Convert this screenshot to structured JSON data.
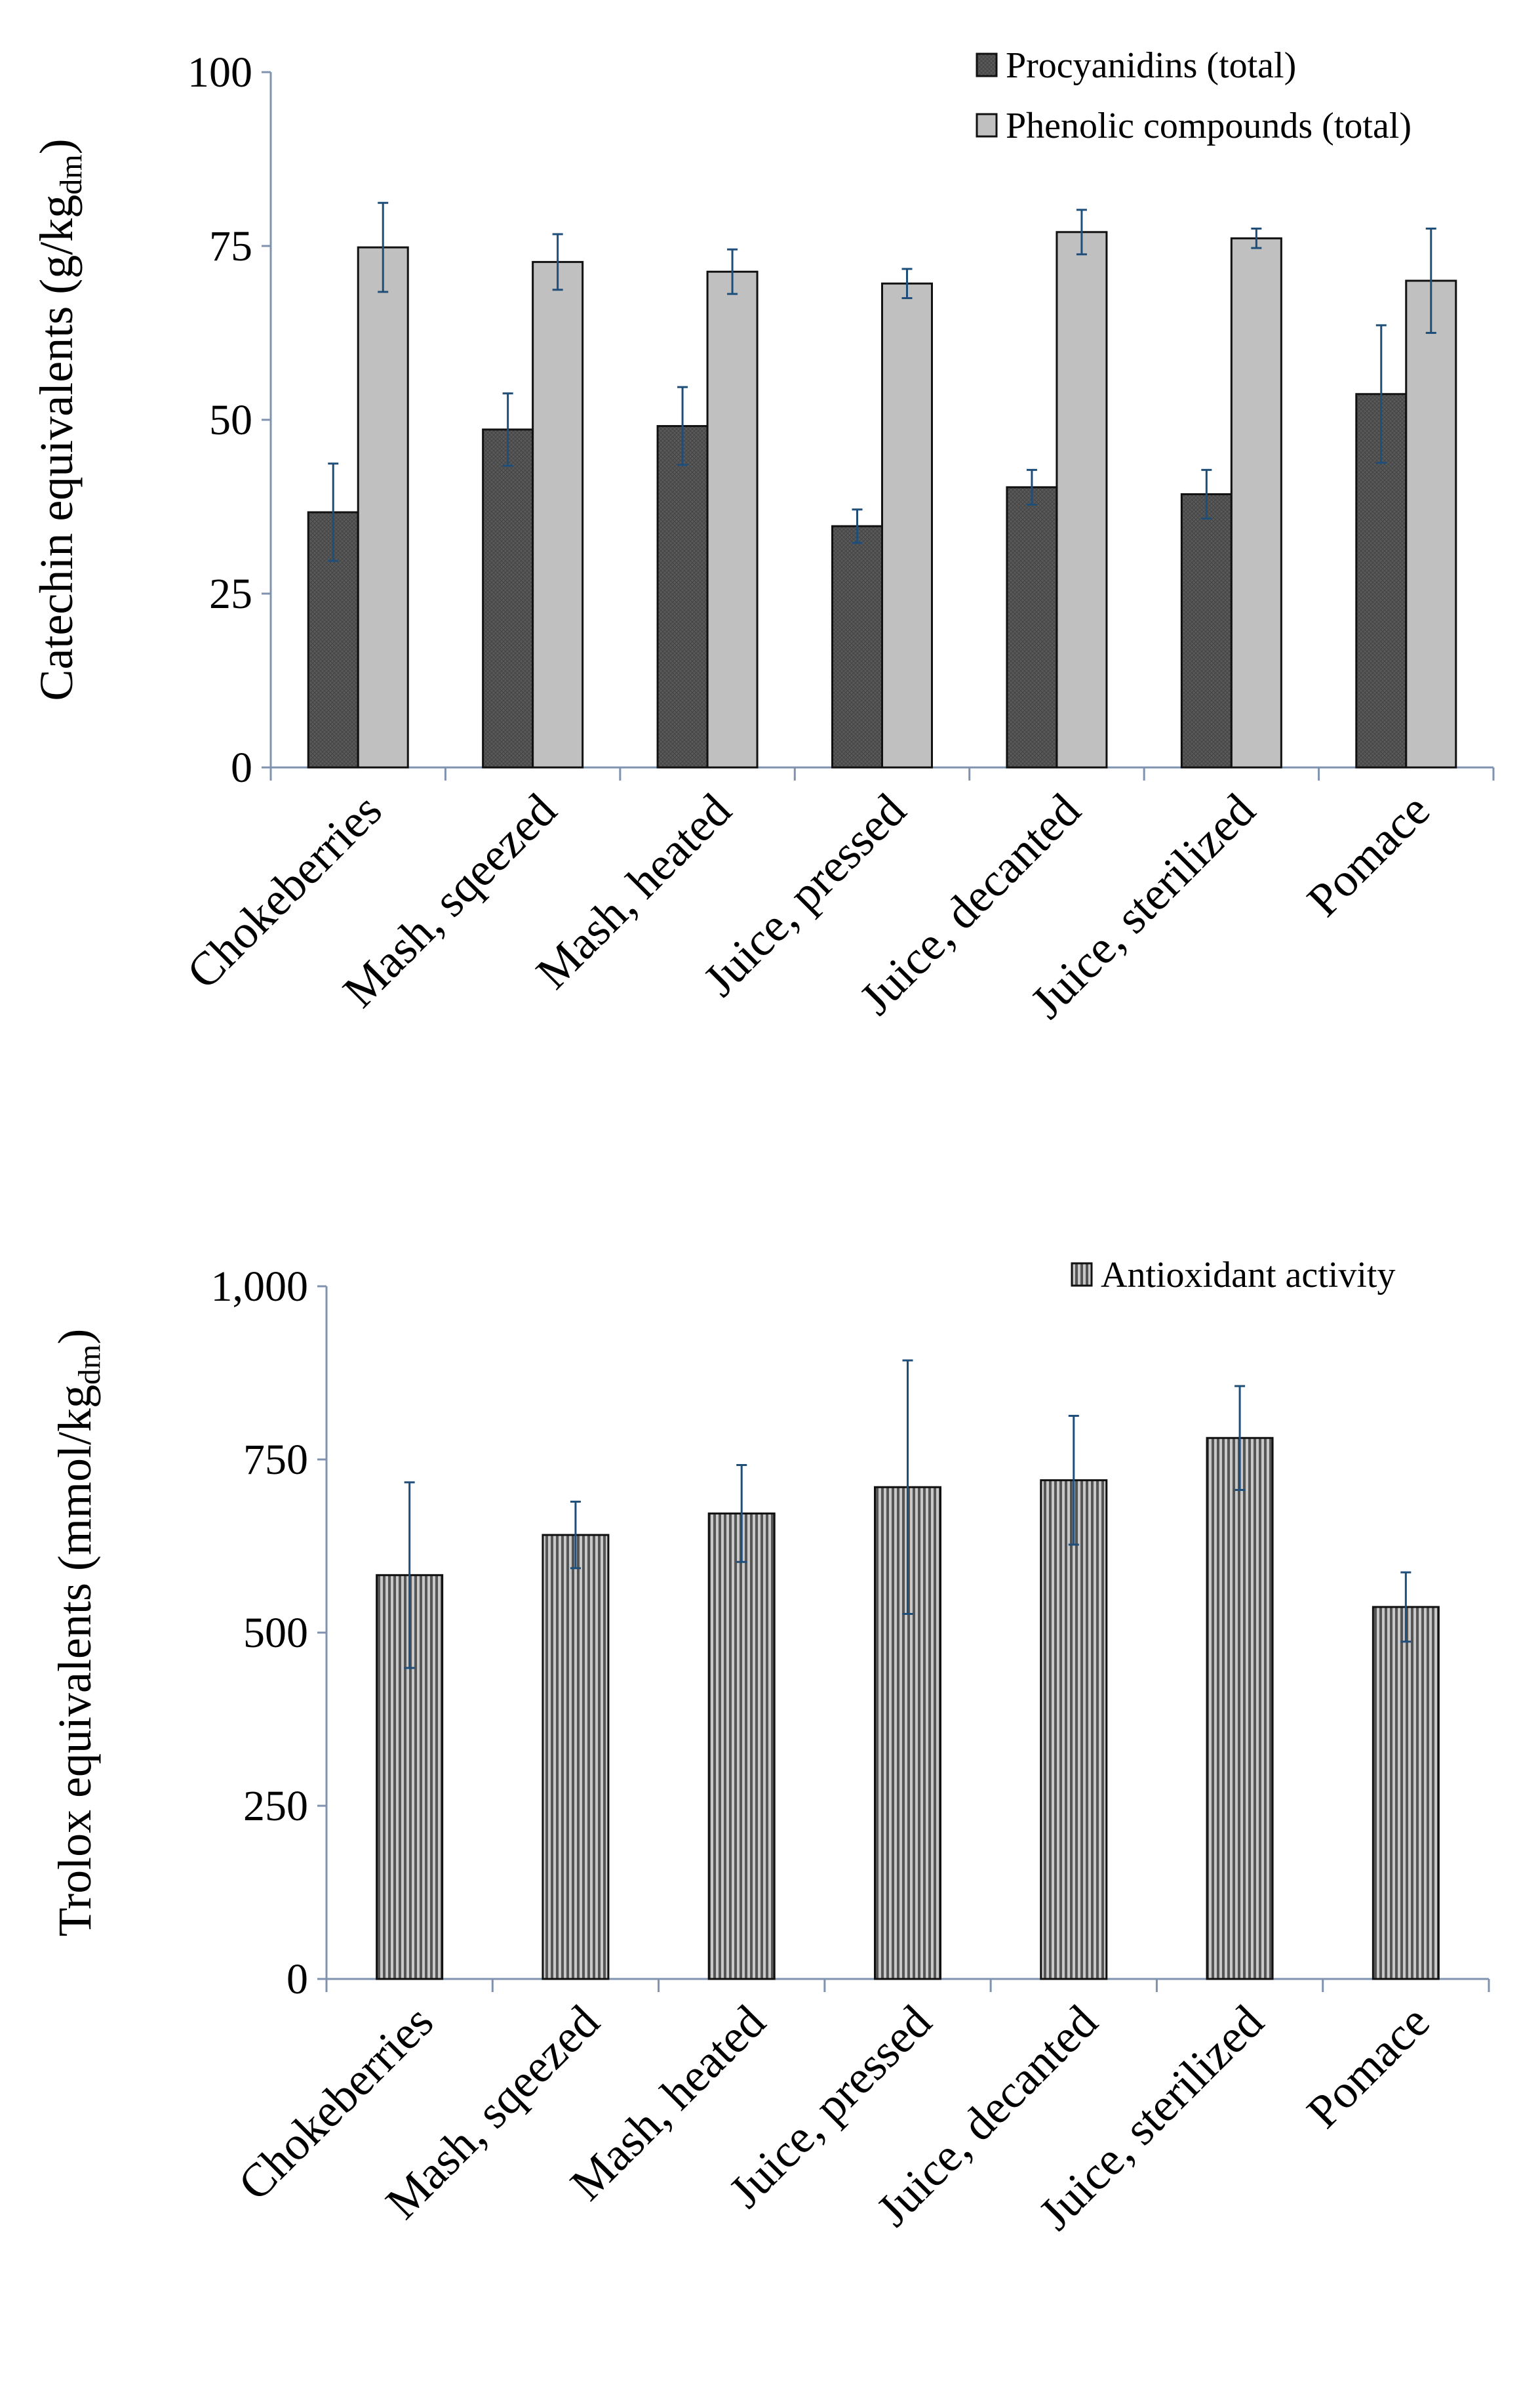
{
  "chart_data": [
    {
      "type": "bar",
      "ylabel": "Catechin equivalents (g/kg",
      "ylabel_sub": "dm",
      "ylabel_close": ")",
      "ylim": [
        0,
        100
      ],
      "yticks": [
        0,
        25,
        50,
        75,
        100
      ],
      "ytick_labels": [
        "0",
        "25",
        "50",
        "75",
        "100"
      ],
      "categories": [
        "Chokeberries",
        "Mash, sqeezed",
        "Mash, heated",
        "Juice, pressed",
        "Juice, decanted",
        "Juice, sterilized",
        "Pomace"
      ],
      "legend_position": "top-right",
      "grid": false,
      "series": [
        {
          "name": "Procyanidins (total)",
          "color": "#5a5a5a",
          "values": [
            36.7,
            48.6,
            49.1,
            34.7,
            40.3,
            39.3,
            53.7
          ],
          "error": [
            7.0,
            5.2,
            5.6,
            2.4,
            2.5,
            3.5,
            9.9
          ]
        },
        {
          "name": "Phenolic compounds (total)",
          "color": "#c0c0c0",
          "values": [
            74.8,
            72.7,
            71.3,
            69.6,
            77.0,
            76.1,
            70.0
          ],
          "error": [
            6.4,
            4.0,
            3.2,
            2.1,
            3.2,
            1.4,
            7.5
          ]
        }
      ]
    },
    {
      "type": "bar",
      "ylabel": "Trolox equivalents (mmol/kg",
      "ylabel_sub": "dm",
      "ylabel_close": ")",
      "ylim": [
        0,
        1000
      ],
      "yticks": [
        0,
        250,
        500,
        750,
        1000
      ],
      "ytick_labels": [
        "0",
        "250",
        "500",
        "750",
        "1,000"
      ],
      "categories": [
        "Chokeberries",
        "Mash, sqeezed",
        "Mash, heated",
        "Juice, pressed",
        "Juice, decanted",
        "Juice, sterilized",
        "Pomace"
      ],
      "legend_position": "top-right",
      "grid": false,
      "series": [
        {
          "name": "Antioxidant activity",
          "color": "#909090",
          "values": [
            583,
            641,
            672,
            710,
            720,
            781,
            537
          ],
          "error": [
            134,
            48,
            70,
            183,
            93,
            75,
            50
          ]
        }
      ]
    }
  ],
  "error_bar_color": "#1f4e79",
  "axis_color": "#7f93b0"
}
